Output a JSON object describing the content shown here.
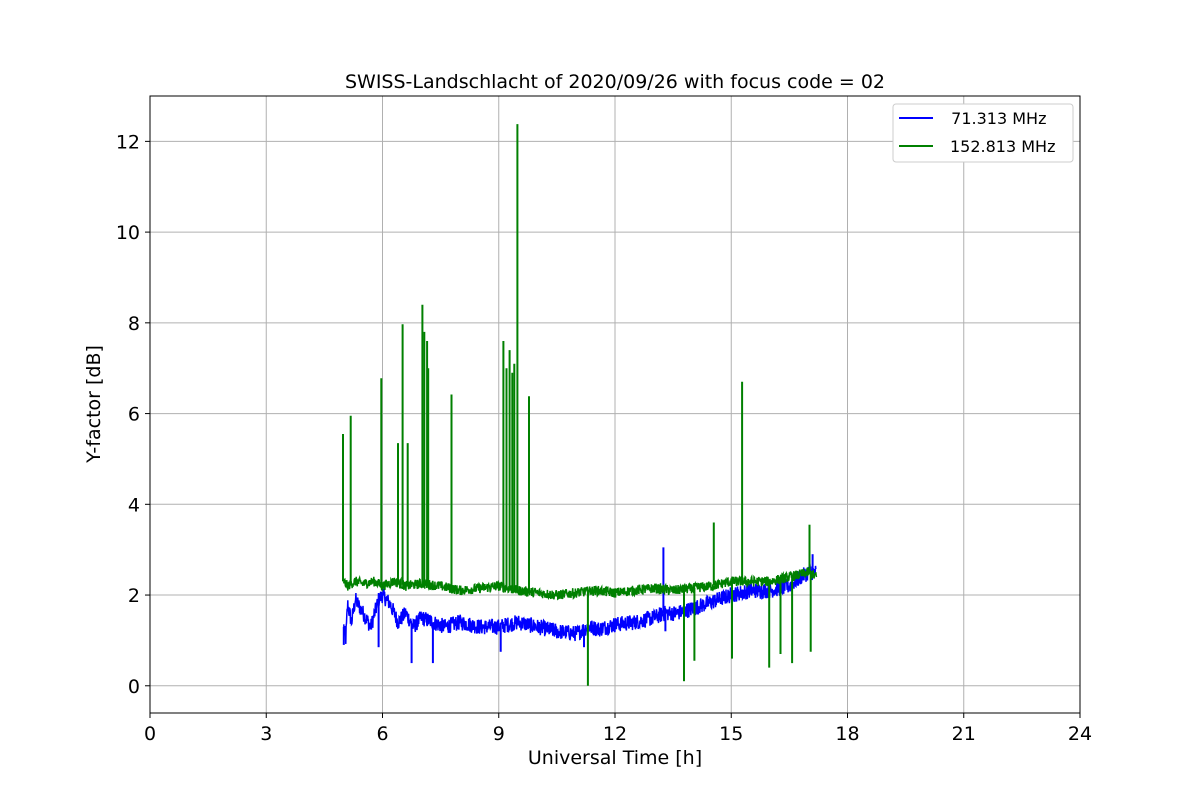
{
  "chart_data": {
    "type": "line",
    "title": "SWISS-Landschlacht of 2020/09/26 with focus code = 02",
    "xlabel": "Universal Time [h]",
    "ylabel": "Y-factor [dB]",
    "xlim": [
      0,
      24
    ],
    "ylim": [
      -0.6,
      13.0
    ],
    "xticks": [
      0,
      3,
      6,
      9,
      12,
      15,
      18,
      21,
      24
    ],
    "yticks": [
      0,
      2,
      4,
      6,
      8,
      10,
      12
    ],
    "xtick_labels": [
      "0",
      "3",
      "6",
      "9",
      "12",
      "15",
      "18",
      "21",
      "24"
    ],
    "ytick_labels": [
      "0",
      "2",
      "4",
      "6",
      "8",
      "10",
      "12"
    ],
    "grid": true,
    "legend_position": "top-right",
    "series": [
      {
        "name": "71.313 MHz",
        "legend_label": "  71.313 MHz",
        "color": "#0000ff",
        "x": [
          5.0,
          5.05,
          5.1,
          5.2,
          5.3,
          5.5,
          5.7,
          5.9,
          6.0,
          6.2,
          6.4,
          6.6,
          6.8,
          7.0,
          7.3,
          7.6,
          8.0,
          8.5,
          9.0,
          9.5,
          10.0,
          10.5,
          11.0,
          11.3,
          11.6,
          12.0,
          12.5,
          13.0,
          13.3,
          13.6,
          14.0,
          14.5,
          15.0,
          15.5,
          16.0,
          16.5,
          16.8,
          17.0,
          17.2
        ],
        "values": [
          1.3,
          1.0,
          1.8,
          1.4,
          1.9,
          1.6,
          1.3,
          1.9,
          2.0,
          1.8,
          1.4,
          1.6,
          1.3,
          1.5,
          1.4,
          1.3,
          1.4,
          1.3,
          1.3,
          1.4,
          1.3,
          1.2,
          1.15,
          1.3,
          1.25,
          1.35,
          1.4,
          1.5,
          1.6,
          1.6,
          1.7,
          1.85,
          2.0,
          2.1,
          2.1,
          2.2,
          2.4,
          2.5,
          2.5
        ],
        "spikes": [
          {
            "x": 5.0,
            "y": 0.9
          },
          {
            "x": 5.9,
            "y": 0.85
          },
          {
            "x": 6.75,
            "y": 0.5
          },
          {
            "x": 7.3,
            "y": 0.5
          },
          {
            "x": 9.05,
            "y": 0.75
          },
          {
            "x": 11.2,
            "y": 0.85
          },
          {
            "x": 13.25,
            "y": 3.05
          },
          {
            "x": 13.3,
            "y": 1.2
          },
          {
            "x": 17.1,
            "y": 2.9
          }
        ]
      },
      {
        "name": "152.813 MHz",
        "legend_label": "152.813 MHz",
        "color": "#008000",
        "x": [
          5.0,
          5.1,
          5.3,
          5.5,
          5.8,
          6.0,
          6.3,
          6.6,
          7.0,
          7.5,
          8.0,
          8.5,
          9.0,
          9.5,
          10.0,
          10.5,
          11.0,
          11.5,
          12.0,
          12.5,
          13.0,
          13.5,
          14.0,
          14.5,
          15.0,
          15.5,
          16.0,
          16.5,
          17.0,
          17.2
        ],
        "values": [
          2.3,
          2.2,
          2.3,
          2.25,
          2.3,
          2.2,
          2.3,
          2.2,
          2.25,
          2.2,
          2.1,
          2.15,
          2.2,
          2.1,
          2.05,
          2.0,
          2.05,
          2.1,
          2.05,
          2.1,
          2.15,
          2.1,
          2.15,
          2.2,
          2.3,
          2.3,
          2.3,
          2.4,
          2.5,
          2.4
        ],
        "spikes": [
          {
            "x": 4.98,
            "y": 5.55
          },
          {
            "x": 5.18,
            "y": 5.95
          },
          {
            "x": 5.97,
            "y": 6.78
          },
          {
            "x": 6.4,
            "y": 5.35
          },
          {
            "x": 6.52,
            "y": 7.97
          },
          {
            "x": 6.65,
            "y": 5.35
          },
          {
            "x": 7.03,
            "y": 8.4
          },
          {
            "x": 7.08,
            "y": 7.8
          },
          {
            "x": 7.15,
            "y": 7.6
          },
          {
            "x": 7.18,
            "y": 7.0
          },
          {
            "x": 7.78,
            "y": 6.42
          },
          {
            "x": 9.12,
            "y": 7.6
          },
          {
            "x": 9.2,
            "y": 7.0
          },
          {
            "x": 9.28,
            "y": 7.4
          },
          {
            "x": 9.35,
            "y": 6.9
          },
          {
            "x": 9.4,
            "y": 7.1
          },
          {
            "x": 9.48,
            "y": 12.38
          },
          {
            "x": 9.78,
            "y": 6.38
          },
          {
            "x": 11.3,
            "y": 0.0
          },
          {
            "x": 13.78,
            "y": 0.1
          },
          {
            "x": 14.05,
            "y": 0.55
          },
          {
            "x": 14.55,
            "y": 3.6
          },
          {
            "x": 15.02,
            "y": 0.6
          },
          {
            "x": 15.28,
            "y": 6.7
          },
          {
            "x": 15.98,
            "y": 0.4
          },
          {
            "x": 16.27,
            "y": 0.7
          },
          {
            "x": 16.57,
            "y": 0.5
          },
          {
            "x": 17.02,
            "y": 3.55
          },
          {
            "x": 17.05,
            "y": 0.75
          }
        ]
      }
    ]
  }
}
